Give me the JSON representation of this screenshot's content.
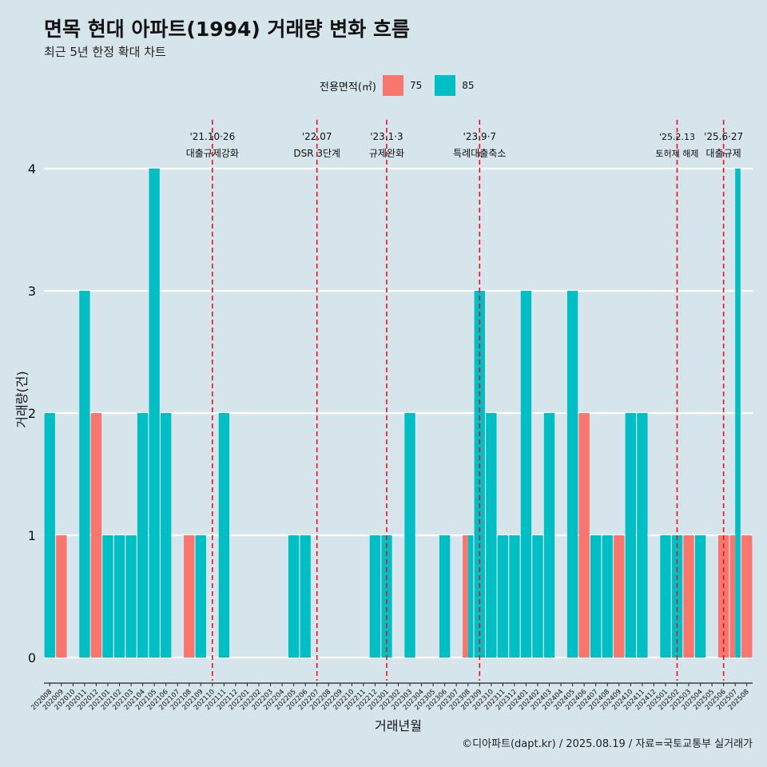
{
  "title": "면목 현대 아파트(1994) 거래량 변화 흐름",
  "subtitle": "최근 5년 한정 확대 차트",
  "legend": {
    "title": "전용면적(㎡)",
    "items": [
      {
        "label": "75",
        "color": "#f8766d"
      },
      {
        "label": "85",
        "color": "#00bfc4"
      }
    ]
  },
  "caption": "©디아파트(dapt.kr) / 2025.08.19 / 자료=국토교통부 실거래가",
  "chart_data": {
    "type": "bar",
    "xlabel": "거래년월",
    "ylabel": "거래량(건)",
    "ylim": [
      0,
      4
    ],
    "yticks": [
      0,
      1,
      2,
      3,
      4
    ],
    "grid": true,
    "legend_position": "top",
    "categories": [
      "202008",
      "202009",
      "202010",
      "202011",
      "202012",
      "202101",
      "202102",
      "202103",
      "202104",
      "202105",
      "202106",
      "202107",
      "202108",
      "202109",
      "202110",
      "202111",
      "202112",
      "202201",
      "202202",
      "202203",
      "202204",
      "202205",
      "202206",
      "202207",
      "202208",
      "202209",
      "202210",
      "202211",
      "202212",
      "202301",
      "202302",
      "202303",
      "202304",
      "202305",
      "202306",
      "202307",
      "202308",
      "202309",
      "202310",
      "202311",
      "202312",
      "202401",
      "202402",
      "202403",
      "202404",
      "202405",
      "202406",
      "202407",
      "202408",
      "202409",
      "202410",
      "202411",
      "202412",
      "202501",
      "202502",
      "202503",
      "202504",
      "202505",
      "202506",
      "202507",
      "202508"
    ],
    "series": [
      {
        "name": "75",
        "color": "#f8766d",
        "values": [
          0,
          1,
          0,
          0,
          2,
          0,
          0,
          0,
          0,
          0,
          0,
          0,
          1,
          0,
          0,
          0,
          0,
          0,
          0,
          0,
          0,
          0,
          0,
          0,
          0,
          0,
          0,
          0,
          0,
          0,
          0,
          0,
          0,
          0,
          0,
          0,
          1,
          0,
          0,
          0,
          0,
          0,
          0,
          0,
          0,
          0,
          2,
          0,
          0,
          1,
          0,
          0,
          0,
          0,
          0,
          1,
          0,
          0,
          1,
          1,
          1
        ]
      },
      {
        "name": "85",
        "color": "#00bfc4",
        "values": [
          2,
          0,
          0,
          3,
          0,
          1,
          1,
          1,
          2,
          4,
          2,
          0,
          0,
          1,
          0,
          2,
          0,
          0,
          0,
          0,
          0,
          1,
          1,
          0,
          0,
          0,
          0,
          0,
          1,
          1,
          0,
          2,
          0,
          0,
          1,
          0,
          1,
          3,
          2,
          1,
          1,
          3,
          1,
          2,
          0,
          3,
          0,
          1,
          1,
          0,
          2,
          2,
          0,
          1,
          1,
          0,
          1,
          0,
          0,
          4,
          0
        ]
      }
    ],
    "annotations": [
      {
        "at": "202110",
        "line1": "'21.10·26",
        "line2": "대출규제강화"
      },
      {
        "at": "202207",
        "line1": "'22.07",
        "line2": "DSR 3단계"
      },
      {
        "at": "202301",
        "line1": "'23.1·3",
        "line2": "규제완화"
      },
      {
        "at": "202309",
        "line1": "'23.9·7",
        "line2": "특례대출축소"
      },
      {
        "at": "202502",
        "line1": "'25.2.13",
        "line2": "토허제 해제"
      },
      {
        "at": "202506",
        "line1": "'25.6·27",
        "line2": "대출규제"
      }
    ]
  }
}
